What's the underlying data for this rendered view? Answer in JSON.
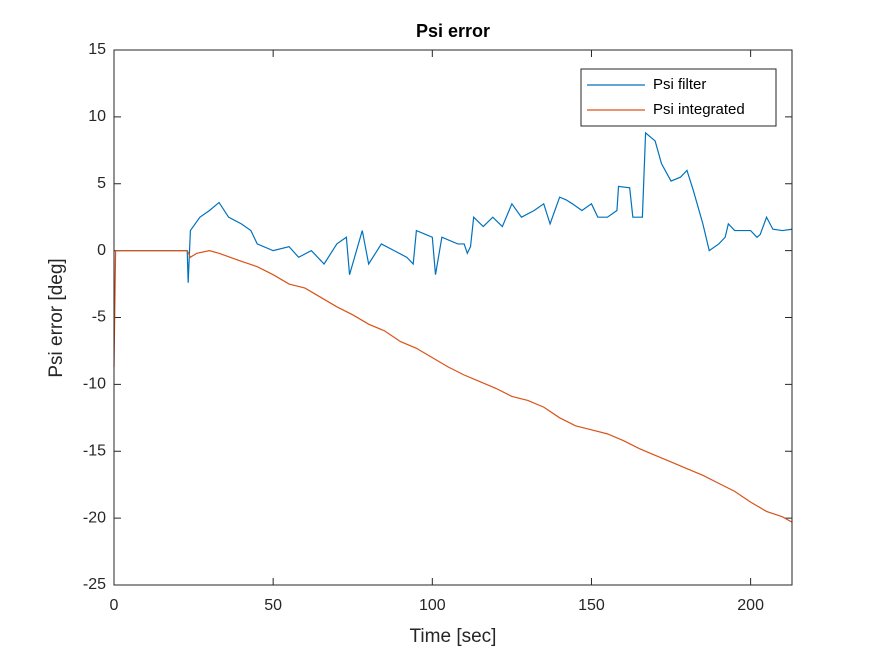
{
  "chart_data": {
    "type": "line",
    "title": "Psi error",
    "xlabel": "Time [sec]",
    "ylabel": "Psi error [deg]",
    "xlim": [
      0,
      213
    ],
    "ylim": [
      -25,
      15
    ],
    "xticks": [
      0,
      50,
      100,
      150,
      200
    ],
    "yticks": [
      -25,
      -20,
      -15,
      -10,
      -5,
      0,
      5,
      10,
      15
    ],
    "grid": false,
    "legend": "northeast",
    "series": [
      {
        "name": "Psi filter",
        "color": "#0072BD",
        "x": [
          0,
          23,
          23.3,
          24,
          27,
          30,
          33,
          36,
          40,
          43,
          45,
          50,
          55,
          58,
          62,
          66,
          70,
          73,
          74,
          78,
          80,
          84,
          88,
          92,
          94,
          95,
          98,
          100,
          101,
          103,
          108,
          110,
          111,
          112,
          113,
          116,
          119,
          122,
          125,
          128,
          132,
          135,
          137,
          140,
          142,
          144,
          147,
          150,
          152,
          155,
          158,
          158.5,
          162,
          163,
          166,
          167,
          170,
          172,
          175,
          178,
          180,
          182,
          185,
          187,
          190,
          192,
          193,
          195,
          198,
          200,
          202,
          203,
          205,
          207,
          210,
          213
        ],
        "values": [
          0,
          0,
          -2.4,
          1.5,
          2.5,
          3,
          3.6,
          2.5,
          2,
          1.5,
          0.5,
          0,
          0.3,
          -0.5,
          0,
          -1,
          0.5,
          1,
          -1.8,
          1.5,
          -1,
          0.5,
          0,
          -0.5,
          -1,
          1.5,
          1.2,
          1,
          -1.8,
          1,
          0.5,
          0.5,
          -0.2,
          0.3,
          2.5,
          1.8,
          2.5,
          1.8,
          3.5,
          2.5,
          3,
          3.5,
          2,
          4,
          3.8,
          3.5,
          3,
          3.5,
          2.5,
          2.5,
          3,
          4.8,
          4.7,
          2.5,
          2.5,
          8.8,
          8.2,
          6.5,
          5.2,
          5.5,
          6,
          4.5,
          2,
          0,
          0.5,
          1,
          2,
          1.5,
          1.5,
          1.5,
          1,
          1.2,
          2.5,
          1.6,
          1.5,
          1.6
        ]
      },
      {
        "name": "Psi integrated",
        "color": "#D95319",
        "x": [
          0,
          0.5,
          23,
          24,
          26,
          30,
          33,
          40,
          45,
          50,
          55,
          60,
          65,
          70,
          75,
          80,
          85,
          90,
          95,
          100,
          105,
          110,
          115,
          120,
          125,
          130,
          135,
          140,
          145,
          150,
          155,
          160,
          165,
          170,
          175,
          180,
          185,
          190,
          195,
          200,
          205,
          210,
          213
        ],
        "values": [
          -8.7,
          0,
          0,
          -0.5,
          -0.2,
          0,
          -0.2,
          -0.8,
          -1.2,
          -1.8,
          -2.5,
          -2.8,
          -3.5,
          -4.2,
          -4.8,
          -5.5,
          -6,
          -6.8,
          -7.3,
          -8,
          -8.7,
          -9.3,
          -9.8,
          -10.3,
          -10.9,
          -11.2,
          -11.7,
          -12.5,
          -13.1,
          -13.4,
          -13.7,
          -14.2,
          -14.8,
          -15.3,
          -15.8,
          -16.3,
          -16.8,
          -17.4,
          -18,
          -18.8,
          -19.5,
          -19.9,
          -20.3
        ]
      }
    ]
  }
}
